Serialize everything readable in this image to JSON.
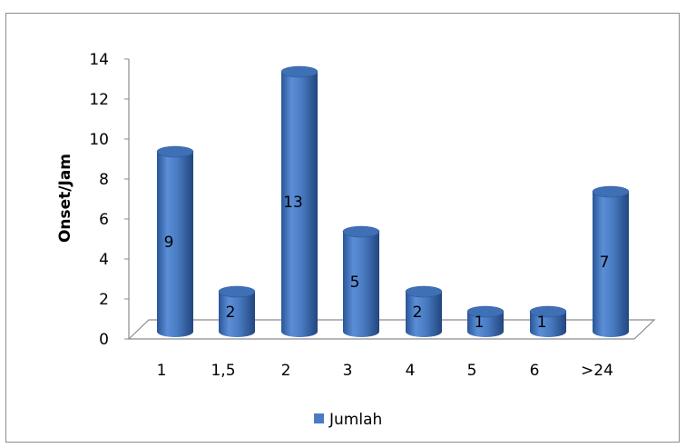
{
  "chart_data": {
    "type": "bar",
    "categories": [
      "1",
      "1,5",
      "2",
      "3",
      "4",
      "5",
      "6",
      ">24"
    ],
    "series": [
      {
        "name": "Jumlah",
        "values": [
          9,
          2,
          13,
          5,
          2,
          1,
          1,
          7
        ]
      }
    ],
    "ylabel": "Onset/Jam",
    "xlabel": "",
    "ylim": [
      0,
      14
    ],
    "yticks": [
      0,
      2,
      4,
      6,
      8,
      10,
      12,
      14
    ],
    "data_labels": [
      "9",
      "2",
      "13",
      "5",
      "2",
      "1",
      "1",
      "7"
    ],
    "legend_position": "bottom",
    "bar_style": "3d-cylinder",
    "color": "#4a7cc4"
  }
}
